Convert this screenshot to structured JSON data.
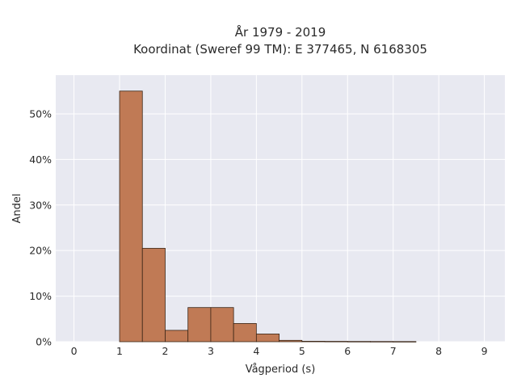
{
  "chart_data": {
    "type": "bar",
    "title_line1": "År 1979 - 2019",
    "title_line2": "Koordinat (Sweref 99 TM): E 377465, N 6168305",
    "xlabel": "Vågperiod (s)",
    "ylabel": "Andel",
    "xlim": [
      -0.4,
      9.45
    ],
    "ylim": [
      0,
      0.585
    ],
    "x_ticks": [
      0,
      1,
      2,
      3,
      4,
      5,
      6,
      7,
      8,
      9
    ],
    "y_ticks": [
      0,
      0.1,
      0.2,
      0.3,
      0.4,
      0.5
    ],
    "y_tick_labels": [
      "0%",
      "10%",
      "20%",
      "30%",
      "40%",
      "50%"
    ],
    "bin_width": 0.5,
    "bins": [
      {
        "start": 1.0,
        "value": 0.55
      },
      {
        "start": 1.5,
        "value": 0.205
      },
      {
        "start": 2.0,
        "value": 0.025
      },
      {
        "start": 2.5,
        "value": 0.075
      },
      {
        "start": 3.0,
        "value": 0.075
      },
      {
        "start": 3.5,
        "value": 0.04
      },
      {
        "start": 4.0,
        "value": 0.017
      },
      {
        "start": 4.5,
        "value": 0.003
      },
      {
        "start": 5.0,
        "value": 0.001
      },
      {
        "start": 5.5,
        "value": 0.0008
      },
      {
        "start": 6.0,
        "value": 0.0006
      },
      {
        "start": 6.5,
        "value": 0.0005
      },
      {
        "start": 7.0,
        "value": 0.0004
      }
    ],
    "colors": {
      "bar_fill": "#c07a55",
      "bar_stroke": "#3a2516",
      "plot_bg": "#e8e9f1",
      "grid": "#ffffff"
    },
    "grid": true,
    "legend": "none"
  }
}
